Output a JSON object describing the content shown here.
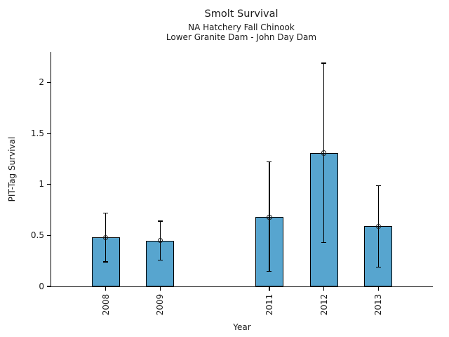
{
  "header": {
    "title": "Smolt Survival",
    "subtitle1": "NA Hatchery Fall Chinook",
    "subtitle2": "Lower Granite Dam - John Day Dam"
  },
  "chart_data": {
    "type": "bar",
    "title": "Smolt Survival",
    "subtitle1": "NA Hatchery Fall Chinook",
    "subtitle2": "Lower Granite Dam - John Day Dam",
    "xlabel": "Year",
    "ylabel": "PIT-Tag Survival",
    "categories": [
      "2008",
      "2009",
      "2011",
      "2012",
      "2013"
    ],
    "values": [
      0.48,
      0.45,
      0.68,
      1.31,
      0.59
    ],
    "ci_low": [
      0.24,
      0.26,
      0.15,
      0.43,
      0.19
    ],
    "ci_high": [
      0.72,
      0.64,
      1.22,
      2.19,
      0.99
    ],
    "yticks": [
      0,
      0.5,
      1,
      1.5,
      2
    ],
    "ytick_labels": [
      "0",
      "0.5",
      "1",
      "1.5",
      "2"
    ],
    "ylim": [
      0,
      2.3
    ],
    "xlim": [
      2007,
      2014
    ],
    "x_tick_rotation": 90,
    "grid": false,
    "legend": "none",
    "bar_color": "#57a5cf",
    "bar_edge_color": "#000000",
    "error_bar_color": "#000000",
    "mean_marker": "open-circle"
  }
}
